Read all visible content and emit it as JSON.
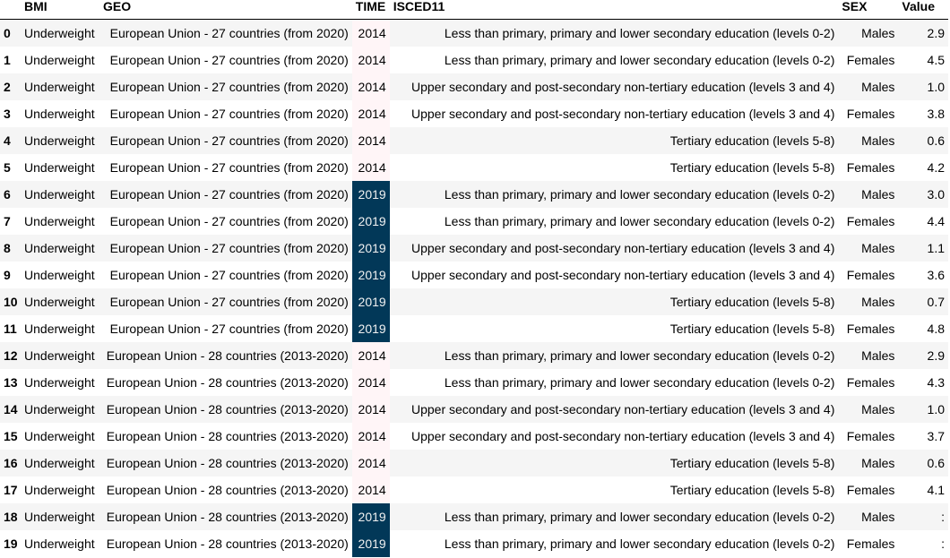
{
  "columns": {
    "index": "",
    "bmi": "BMI",
    "geo": "GEO",
    "time": "TIME",
    "isced": "ISCED11",
    "sex": "SEX",
    "value": "Value"
  },
  "rows": [
    {
      "i": "0",
      "bmi": "Underweight",
      "geo": "European Union - 27 countries (from 2020)",
      "time": "2014",
      "isced": "Less than primary, primary and lower secondary education (levels 0-2)",
      "sex": "Males",
      "value": "2.9"
    },
    {
      "i": "1",
      "bmi": "Underweight",
      "geo": "European Union - 27 countries (from 2020)",
      "time": "2014",
      "isced": "Less than primary, primary and lower secondary education (levels 0-2)",
      "sex": "Females",
      "value": "4.5"
    },
    {
      "i": "2",
      "bmi": "Underweight",
      "geo": "European Union - 27 countries (from 2020)",
      "time": "2014",
      "isced": "Upper secondary and post-secondary non-tertiary education (levels 3 and 4)",
      "sex": "Males",
      "value": "1.0"
    },
    {
      "i": "3",
      "bmi": "Underweight",
      "geo": "European Union - 27 countries (from 2020)",
      "time": "2014",
      "isced": "Upper secondary and post-secondary non-tertiary education (levels 3 and 4)",
      "sex": "Females",
      "value": "3.8"
    },
    {
      "i": "4",
      "bmi": "Underweight",
      "geo": "European Union - 27 countries (from 2020)",
      "time": "2014",
      "isced": "Tertiary education (levels 5-8)",
      "sex": "Males",
      "value": "0.6"
    },
    {
      "i": "5",
      "bmi": "Underweight",
      "geo": "European Union - 27 countries (from 2020)",
      "time": "2014",
      "isced": "Tertiary education (levels 5-8)",
      "sex": "Females",
      "value": "4.2"
    },
    {
      "i": "6",
      "bmi": "Underweight",
      "geo": "European Union - 27 countries (from 2020)",
      "time": "2019",
      "isced": "Less than primary, primary and lower secondary education (levels 0-2)",
      "sex": "Males",
      "value": "3.0"
    },
    {
      "i": "7",
      "bmi": "Underweight",
      "geo": "European Union - 27 countries (from 2020)",
      "time": "2019",
      "isced": "Less than primary, primary and lower secondary education (levels 0-2)",
      "sex": "Females",
      "value": "4.4"
    },
    {
      "i": "8",
      "bmi": "Underweight",
      "geo": "European Union - 27 countries (from 2020)",
      "time": "2019",
      "isced": "Upper secondary and post-secondary non-tertiary education (levels 3 and 4)",
      "sex": "Males",
      "value": "1.1"
    },
    {
      "i": "9",
      "bmi": "Underweight",
      "geo": "European Union - 27 countries (from 2020)",
      "time": "2019",
      "isced": "Upper secondary and post-secondary non-tertiary education (levels 3 and 4)",
      "sex": "Females",
      "value": "3.6"
    },
    {
      "i": "10",
      "bmi": "Underweight",
      "geo": "European Union - 27 countries (from 2020)",
      "time": "2019",
      "isced": "Tertiary education (levels 5-8)",
      "sex": "Males",
      "value": "0.7"
    },
    {
      "i": "11",
      "bmi": "Underweight",
      "geo": "European Union - 27 countries (from 2020)",
      "time": "2019",
      "isced": "Tertiary education (levels 5-8)",
      "sex": "Females",
      "value": "4.8"
    },
    {
      "i": "12",
      "bmi": "Underweight",
      "geo": "European Union - 28 countries (2013-2020)",
      "time": "2014",
      "isced": "Less than primary, primary and lower secondary education (levels 0-2)",
      "sex": "Males",
      "value": "2.9"
    },
    {
      "i": "13",
      "bmi": "Underweight",
      "geo": "European Union - 28 countries (2013-2020)",
      "time": "2014",
      "isced": "Less than primary, primary and lower secondary education (levels 0-2)",
      "sex": "Females",
      "value": "4.3"
    },
    {
      "i": "14",
      "bmi": "Underweight",
      "geo": "European Union - 28 countries (2013-2020)",
      "time": "2014",
      "isced": "Upper secondary and post-secondary non-tertiary education (levels 3 and 4)",
      "sex": "Males",
      "value": "1.0"
    },
    {
      "i": "15",
      "bmi": "Underweight",
      "geo": "European Union - 28 countries (2013-2020)",
      "time": "2014",
      "isced": "Upper secondary and post-secondary non-tertiary education (levels 3 and 4)",
      "sex": "Females",
      "value": "3.7"
    },
    {
      "i": "16",
      "bmi": "Underweight",
      "geo": "European Union - 28 countries (2013-2020)",
      "time": "2014",
      "isced": "Tertiary education (levels 5-8)",
      "sex": "Males",
      "value": "0.6"
    },
    {
      "i": "17",
      "bmi": "Underweight",
      "geo": "European Union - 28 countries (2013-2020)",
      "time": "2014",
      "isced": "Tertiary education (levels 5-8)",
      "sex": "Females",
      "value": "4.1"
    },
    {
      "i": "18",
      "bmi": "Underweight",
      "geo": "European Union - 28 countries (2013-2020)",
      "time": "2019",
      "isced": "Less than primary, primary and lower secondary education (levels 0-2)",
      "sex": "Males",
      "value": ":"
    },
    {
      "i": "19",
      "bmi": "Underweight",
      "geo": "European Union - 28 countries (2013-2020)",
      "time": "2019",
      "isced": "Less than primary, primary and lower secondary education (levels 0-2)",
      "sex": "Females",
      "value": ":"
    }
  ],
  "time_highlight": {
    "2014": "#fff5f7",
    "2019": "#023858"
  }
}
